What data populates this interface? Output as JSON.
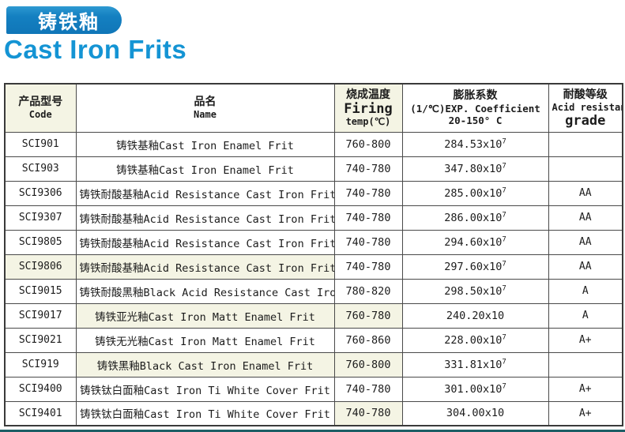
{
  "page": {
    "banner_title": "铸铁釉",
    "page_title": "Cast Iron Frits"
  },
  "colors": {
    "banner_blue": "#1480c1",
    "title_blue": "#1494d4",
    "cell_tint": "#f4f4e4",
    "table_border": "#4a4a4a",
    "bottom_bar_teal": "#1d5e66"
  },
  "table": {
    "headers": {
      "code_zh": "产品型号",
      "code_en": "Code",
      "name_zh": "品名",
      "name_en": "Name",
      "firing_zh": "烧成温度",
      "firing_en": "Firing",
      "firing_unit": "temp(℃)",
      "expansion_zh": "膨胀系数",
      "expansion_en": "(1/℃)EXP. Coefficient",
      "expansion_range": "20-150° C",
      "acid_zh": "耐酸等级",
      "acid_en": "Acid resistance",
      "acid_grade": "grade"
    },
    "rows": [
      {
        "code": "SCI901",
        "name": "铸铁基釉Cast Iron Enamel Frit",
        "firing": "760-800",
        "expansion": "284.53x10",
        "exp_sup": "7",
        "grade": "",
        "tint": []
      },
      {
        "code": "SCI903",
        "name": "铸铁基釉Cast Iron Enamel Frit",
        "firing": "740-780",
        "expansion": "347.80x10",
        "exp_sup": "7",
        "grade": "",
        "tint": []
      },
      {
        "code": "SCI9306",
        "name": "铸铁耐酸基釉Acid Resistance Cast Iron Frit",
        "firing": "740-780",
        "expansion": "285.00x10",
        "exp_sup": "7",
        "grade": "AA",
        "tint": []
      },
      {
        "code": "SCI9307",
        "name": "铸铁耐酸基釉Acid Resistance Cast Iron Frit",
        "firing": "740-780",
        "expansion": "286.00x10",
        "exp_sup": "7",
        "grade": "AA",
        "tint": []
      },
      {
        "code": "SCI9805",
        "name": "铸铁耐酸基釉Acid Resistance Cast Iron Frit",
        "firing": "740-780",
        "expansion": "294.60x10",
        "exp_sup": "7",
        "grade": "AA",
        "tint": []
      },
      {
        "code": "SCI9806",
        "name": "铸铁耐酸基釉Acid Resistance Cast Iron Frit",
        "firing": "740-780",
        "expansion": "297.60x10",
        "exp_sup": "7",
        "grade": "AA",
        "tint": [
          "code",
          "name"
        ]
      },
      {
        "code": "SCI9015",
        "name": "铸铁耐酸黑釉Black Acid Resistance Cast Iron Frit",
        "firing": "780-820",
        "expansion": "298.50x10",
        "exp_sup": "7",
        "grade": "A",
        "tint": []
      },
      {
        "code": "SCI9017",
        "name": "铸铁亚光釉Cast Iron Matt Enamel Frit",
        "firing": "760-780",
        "expansion": "240.20x10",
        "exp_sup": "",
        "grade": "A",
        "tint": [
          "name",
          "firing"
        ]
      },
      {
        "code": "SCI9021",
        "name": "铸铁无光釉Cast Iron Matt Enamel Frit",
        "firing": "760-860",
        "expansion": "228.00x10",
        "exp_sup": "7",
        "grade": "A+",
        "tint": []
      },
      {
        "code": "SCI919",
        "name": "铸铁黑釉Black Cast Iron Enamel Frit",
        "firing": "760-800",
        "expansion": "331.81x10",
        "exp_sup": "7",
        "grade": "",
        "tint": [
          "name",
          "firing"
        ]
      },
      {
        "code": "SCI9400",
        "name": "铸铁钛白面釉Cast Iron Ti White Cover Frit",
        "firing": "740-780",
        "expansion": "301.00x10",
        "exp_sup": "7",
        "grade": "A+",
        "tint": []
      },
      {
        "code": "SCI9401",
        "name": "铸铁钛白面釉Cast Iron Ti White Cover Frit",
        "firing": "740-780",
        "expansion": "304.00x10",
        "exp_sup": "",
        "grade": "A+",
        "tint": [
          "firing"
        ]
      }
    ]
  }
}
